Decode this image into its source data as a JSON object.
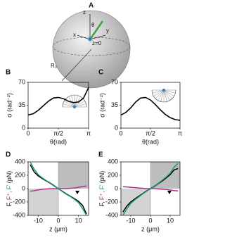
{
  "diagram": {
    "panel": "A",
    "labels": {
      "z": "z",
      "theta": "θ",
      "y": "y",
      "x": "x",
      "z0": "z=0",
      "r0": "R₀"
    }
  },
  "chart_data": [
    {
      "type": "line",
      "panel": "B",
      "xlabel": "θ(rad)",
      "ylabel": "σ (rad⁻²)",
      "x": [
        0,
        0.2618,
        0.5236,
        0.7854,
        1.0472,
        1.309,
        1.5708,
        1.8326,
        2.0944,
        2.3562,
        2.618,
        2.8798,
        3.1416
      ],
      "values": [
        20,
        22,
        27,
        34,
        41,
        46,
        47,
        45,
        41,
        39,
        40,
        46,
        62
      ],
      "color": "#000000",
      "xlim": [
        0,
        3.1416
      ],
      "ylim": [
        0,
        70
      ],
      "xticks": [
        0,
        {
          "value": 1.5708,
          "label": "π/2"
        },
        {
          "value": 3.1416,
          "label": "π"
        }
      ],
      "yticks": [
        0,
        35,
        70
      ]
    },
    {
      "type": "line",
      "panel": "C",
      "xlabel": "θ(rad)",
      "ylabel": "σ (rad⁻²)",
      "x": [
        0,
        0.2618,
        0.5236,
        0.7854,
        1.0472,
        1.309,
        1.5708,
        1.8326,
        2.0944,
        2.3562,
        2.618,
        2.8798,
        3.1416
      ],
      "values": [
        20,
        24,
        31,
        40,
        46,
        47,
        43,
        36,
        28,
        21,
        16,
        13,
        12
      ],
      "color": "#000000",
      "xlim": [
        0,
        3.1416
      ],
      "ylim": [
        0,
        70
      ],
      "xticks": [
        0,
        {
          "value": 1.5708,
          "label": "π/2"
        },
        {
          "value": 3.1416,
          "label": "π"
        }
      ],
      "yticks": [
        0,
        35,
        70
      ]
    },
    {
      "type": "multiline",
      "panel": "D",
      "xlabel": "z (μm)",
      "ylabel": "(pN)",
      "x": [
        -14,
        -12,
        -10,
        -8,
        -6,
        -4,
        -2,
        0,
        2,
        4,
        6,
        8,
        10,
        12,
        14
      ],
      "series": [
        {
          "name": "F,",
          "color": "#000000",
          "values": [
            360,
            250,
            190,
            150,
            115,
            80,
            40,
            0,
            -40,
            -80,
            -115,
            -150,
            -190,
            -250,
            -380
          ]
        },
        {
          "name": "F⁺,",
          "color": "#b0308f",
          "values": [
            -40,
            -30,
            -20,
            -10,
            -5,
            0,
            0,
            0,
            0,
            0,
            5,
            10,
            20,
            30,
            40
          ]
        },
        {
          "name": "F'",
          "color": "#1a9c6b",
          "values": [
            400,
            290,
            210,
            160,
            120,
            85,
            45,
            0,
            -45,
            -85,
            -120,
            -160,
            -210,
            -300,
            -400
          ]
        }
      ],
      "xlim": [
        -15,
        15
      ],
      "ylim": [
        -400,
        400
      ],
      "xticks": [
        -10,
        0,
        10
      ],
      "yticks": [
        -400,
        -200,
        0,
        200,
        400
      ]
    },
    {
      "type": "multiline",
      "panel": "E",
      "xlabel": "z (μm)",
      "ylabel": "(pN)",
      "x": [
        -14,
        -12,
        -10,
        -8,
        -6,
        -4,
        -2,
        0,
        2,
        4,
        6,
        8,
        10,
        12,
        14
      ],
      "series": [
        {
          "name": "F,",
          "color": "#000000",
          "values": [
            -350,
            -260,
            -200,
            -155,
            -115,
            -75,
            -35,
            0,
            35,
            75,
            115,
            160,
            210,
            280,
            300
          ]
        },
        {
          "name": "F⁺,",
          "color": "#b0308f",
          "values": [
            30,
            25,
            20,
            15,
            10,
            5,
            0,
            0,
            0,
            -5,
            -10,
            -15,
            -20,
            -30,
            -35
          ]
        },
        {
          "name": "F'",
          "color": "#1a9c6b",
          "values": [
            -400,
            -300,
            -220,
            -170,
            -125,
            -80,
            -40,
            0,
            40,
            80,
            125,
            175,
            230,
            320,
            380
          ]
        }
      ],
      "xlim": [
        -15,
        15
      ],
      "ylim": [
        -400,
        400
      ],
      "xticks": [
        -10,
        0,
        10
      ],
      "yticks": [
        -400,
        -200,
        0,
        200,
        400
      ]
    }
  ]
}
